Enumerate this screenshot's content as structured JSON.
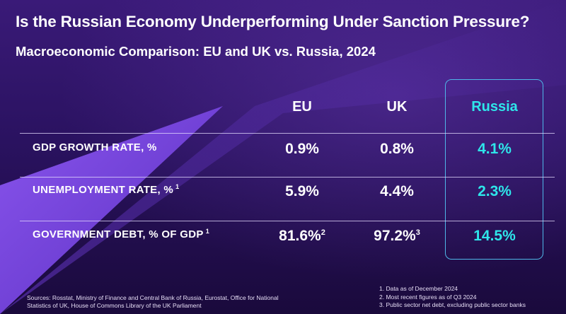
{
  "title": "Is the Russian Economy Underperforming Under Sanction Pressure?",
  "subtitle": "Macroeconomic Comparison: EU and UK vs. Russia, 2024",
  "columns": {
    "eu": "EU",
    "uk": "UK",
    "russia": "Russia"
  },
  "rows": [
    {
      "label": "GDP GROWTH RATE, %",
      "label_note": "",
      "eu": "0.9%",
      "eu_note": "",
      "uk": "0.8%",
      "uk_note": "",
      "russia": "4.1%"
    },
    {
      "label": "UNEMPLOYMENT RATE, %",
      "label_note": "1",
      "eu": "5.9%",
      "eu_note": "",
      "uk": "4.4%",
      "uk_note": "",
      "russia": "2.3%"
    },
    {
      "label": "GOVERNMENT DEBT, % OF GDP",
      "label_note": "1",
      "eu": "81.6%",
      "eu_note": "2",
      "uk": "97.2%",
      "uk_note": "3",
      "russia": "14.5%"
    }
  ],
  "sources": "Sources: Rosstat, Ministry of Finance and Central Bank of Russia, Eurostat, Office for National Statistics of UK, House of Commons Library of the UK Parliament",
  "notes": [
    "1. Data as of December 2024",
    "2. Most recent figures as of Q3 2024",
    "3. Public sector net debt, excluding public sector banks"
  ],
  "colors": {
    "accent": "#2ee6ea",
    "box_border": "#4fb7e8",
    "background": "#2a1260",
    "triangle": "#7a45e0"
  }
}
